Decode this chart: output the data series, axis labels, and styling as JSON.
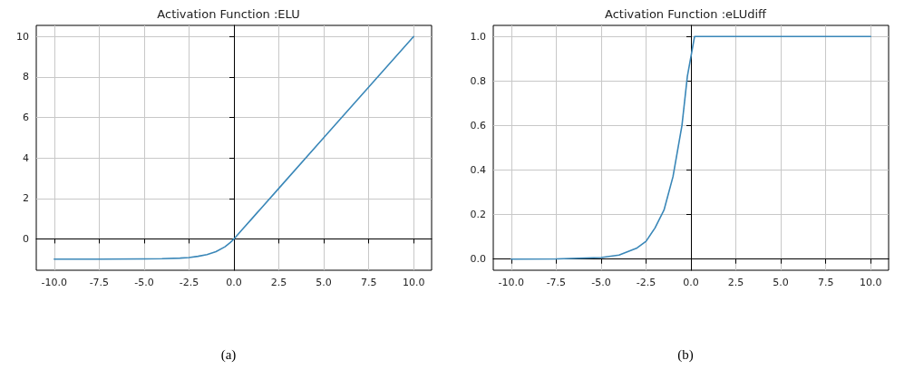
{
  "chart_data": [
    {
      "type": "line",
      "title": "Activation Function :ELU",
      "annotations": [
        "(a)"
      ],
      "x": [
        -10,
        -7.5,
        -5,
        -4,
        -3,
        -2.5,
        -2,
        -1.5,
        -1,
        -0.5,
        -0.2,
        0,
        0.5,
        1,
        1.3,
        1.5,
        2.5,
        5,
        7.5,
        10
      ],
      "series": [
        {
          "color": "#3a87b8",
          "values": [
            -1,
            -1,
            -0.99,
            -0.98,
            -0.95,
            -0.92,
            -0.86,
            -0.78,
            -0.63,
            -0.39,
            -0.18,
            0,
            0.5,
            1,
            1.3,
            1.5,
            2.5,
            5,
            7.5,
            10
          ]
        }
      ],
      "xlim": [
        -11,
        11
      ],
      "ylim": [
        -1.55,
        10.55
      ],
      "xticks": [
        {
          "value": -10,
          "label": "-10.0"
        },
        {
          "value": -7.5,
          "label": "-7.5"
        },
        {
          "value": -5,
          "label": "-5.0"
        },
        {
          "value": -2.5,
          "label": "-2.5"
        },
        {
          "value": 0,
          "label": "0.0"
        },
        {
          "value": 2.5,
          "label": "2.5"
        },
        {
          "value": 5,
          "label": "5.0"
        },
        {
          "value": 7.5,
          "label": "7.5"
        },
        {
          "value": 10,
          "label": "10.0"
        }
      ],
      "yticks": [
        0,
        2,
        4,
        6,
        8,
        10
      ],
      "grid": true,
      "marker": "none",
      "line_style": "solid"
    },
    {
      "type": "line",
      "title": "Activation Function :eLUdiff",
      "annotations": [
        "(b)"
      ],
      "x": [
        -10,
        -7.5,
        -5,
        -4,
        -3,
        -2.5,
        -2,
        -1.5,
        -1,
        -0.5,
        -0.2,
        0.2,
        2.5,
        5,
        7.5,
        10
      ],
      "series": [
        {
          "color": "#3a87b8",
          "values": [
            0,
            0.001,
            0.007,
            0.018,
            0.05,
            0.08,
            0.14,
            0.22,
            0.37,
            0.6,
            0.82,
            1,
            1,
            1,
            1,
            1
          ]
        }
      ],
      "xlim": [
        -11,
        11
      ],
      "ylim": [
        -0.05,
        1.05
      ],
      "xticks": [
        {
          "value": -10,
          "label": "-10.0"
        },
        {
          "value": -7.5,
          "label": "-7.5"
        },
        {
          "value": -5,
          "label": "-5.0"
        },
        {
          "value": -2.5,
          "label": "-2.5"
        },
        {
          "value": 0,
          "label": "0.0"
        },
        {
          "value": 2.5,
          "label": "2.5"
        },
        {
          "value": 5,
          "label": "5.0"
        },
        {
          "value": 7.5,
          "label": "7.5"
        },
        {
          "value": 10,
          "label": "10.0"
        }
      ],
      "yticks": [
        {
          "value": 0,
          "label": "0.0"
        },
        {
          "value": 0.2,
          "label": "0.2"
        },
        {
          "value": 0.4,
          "label": "0.4"
        },
        {
          "value": 0.6,
          "label": "0.6"
        },
        {
          "value": 0.8,
          "label": "0.8"
        },
        {
          "value": 1,
          "label": "1.0"
        }
      ],
      "grid": true,
      "marker": "none",
      "line_style": "solid"
    }
  ]
}
